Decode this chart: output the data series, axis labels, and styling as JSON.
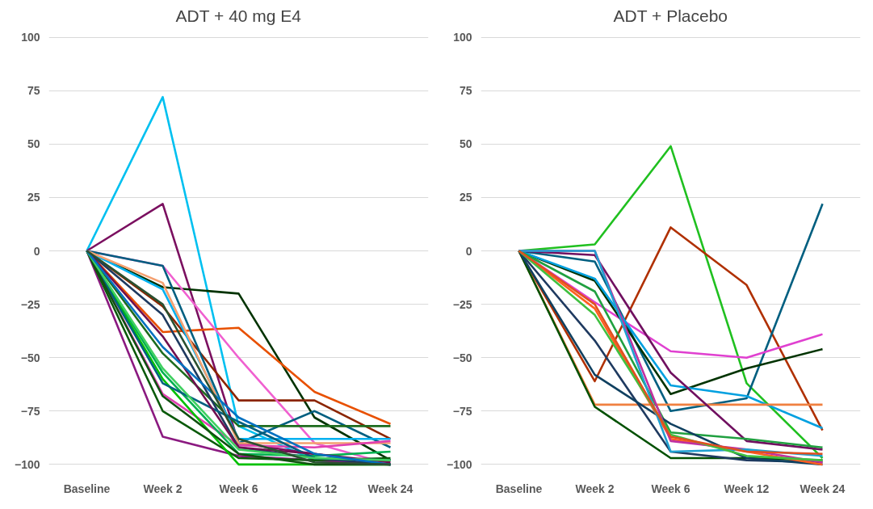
{
  "chart_data": [
    {
      "type": "line",
      "title": "ADT + 40 mg E4",
      "categories": [
        "Baseline",
        "Week 2",
        "Week 6",
        "Week 12",
        "Week 24"
      ],
      "ylim": [
        -100,
        100
      ],
      "yticks": [
        -100,
        -75,
        -50,
        -25,
        0,
        25,
        50,
        75,
        100
      ],
      "grid": "y",
      "line_style": "solid",
      "series": [
        {
          "color": "#00c0f0",
          "values": [
            0,
            72,
            -82,
            -98,
            -100
          ]
        },
        {
          "color": "#7b1060",
          "values": [
            0,
            22,
            -90,
            -95,
            -100
          ]
        },
        {
          "color": "#8b1a80",
          "values": [
            0,
            -87,
            -96,
            -98,
            -100
          ]
        },
        {
          "color": "#003300",
          "values": [
            0,
            -17,
            -20,
            -78,
            -98
          ]
        },
        {
          "color": "#e85000",
          "values": [
            0,
            -38,
            -36,
            -66,
            -81
          ]
        },
        {
          "color": "#8b2500",
          "values": [
            0,
            -26,
            -70,
            -70,
            -88
          ]
        },
        {
          "color": "#f060d0",
          "values": [
            0,
            -7,
            -50,
            -90,
            -100
          ]
        },
        {
          "color": "#005f80",
          "values": [
            0,
            -7,
            -90,
            -75,
            -92
          ]
        },
        {
          "color": "#1e6c1e",
          "values": [
            0,
            -48,
            -82,
            -82,
            -82
          ]
        },
        {
          "color": "#00b0f0",
          "values": [
            0,
            -18,
            -88,
            -88,
            -88
          ]
        },
        {
          "color": "#f4a070",
          "values": [
            0,
            -15,
            -90,
            -90,
            -90
          ]
        },
        {
          "color": "#e040b0",
          "values": [
            0,
            -67,
            -91,
            -92,
            -89
          ]
        },
        {
          "color": "#00b050",
          "values": [
            0,
            -57,
            -95,
            -96,
            -94
          ]
        },
        {
          "color": "#0a5a0a",
          "values": [
            0,
            -75,
            -97,
            -98,
            -97
          ]
        },
        {
          "color": "#00c000",
          "values": [
            0,
            -60,
            -100,
            -100,
            -100
          ]
        },
        {
          "color": "#1f3a60",
          "values": [
            0,
            -30,
            -92,
            -97,
            -100
          ]
        },
        {
          "color": "#006080",
          "values": [
            0,
            -62,
            -80,
            -97,
            -98
          ]
        },
        {
          "color": "#105010",
          "values": [
            0,
            -68,
            -95,
            -100,
            -100
          ]
        },
        {
          "color": "#701050",
          "values": [
            0,
            -40,
            -92,
            -95,
            -99
          ]
        },
        {
          "color": "#40d060",
          "values": [
            0,
            -55,
            -93,
            -97,
            -98
          ]
        },
        {
          "color": "#0070c0",
          "values": [
            0,
            -45,
            -78,
            -95,
            -100
          ]
        },
        {
          "color": "#2a5030",
          "values": [
            0,
            -25,
            -88,
            -99,
            -100
          ]
        }
      ]
    },
    {
      "type": "line",
      "title": "ADT + Placebo",
      "categories": [
        "Baseline",
        "Week 2",
        "Week 6",
        "Week 12",
        "Week 24"
      ],
      "ylim": [
        -100,
        100
      ],
      "yticks": [
        -100,
        -75,
        -50,
        -25,
        0,
        25,
        50,
        75,
        100
      ],
      "grid": "y",
      "line_style": "solid",
      "series": [
        {
          "color": "#20c020",
          "values": [
            0,
            3,
            49,
            -62,
            -97
          ]
        },
        {
          "color": "#b03000",
          "values": [
            0,
            -61,
            11,
            -16,
            -84
          ]
        },
        {
          "color": "#005f80",
          "values": [
            0,
            -5,
            -75,
            -69,
            22
          ]
        },
        {
          "color": "#e040d0",
          "values": [
            0,
            -24,
            -47,
            -50,
            -39
          ]
        },
        {
          "color": "#003300",
          "values": [
            0,
            -14,
            -67,
            -55,
            -46
          ]
        },
        {
          "color": "#00a0e0",
          "values": [
            0,
            -13,
            -63,
            -68,
            -83
          ]
        },
        {
          "color": "#f08040",
          "values": [
            0,
            -72,
            -72,
            -72,
            -72
          ]
        },
        {
          "color": "#701060",
          "values": [
            0,
            -2,
            -57,
            -89,
            -93
          ]
        },
        {
          "color": "#20a040",
          "values": [
            0,
            -19,
            -85,
            -88,
            -92
          ]
        },
        {
          "color": "#005000",
          "values": [
            0,
            -73,
            -97,
            -97,
            -98
          ]
        },
        {
          "color": "#1f3a60",
          "values": [
            0,
            -42,
            -94,
            -98,
            -99
          ]
        },
        {
          "color": "#104060",
          "values": [
            0,
            -58,
            -81,
            -97,
            -100
          ]
        },
        {
          "color": "#ff6020",
          "values": [
            0,
            -27,
            -88,
            -94,
            -100
          ]
        },
        {
          "color": "#c030a0",
          "values": [
            0,
            0,
            -89,
            -93,
            -99
          ]
        },
        {
          "color": "#20a0d0",
          "values": [
            0,
            0,
            -94,
            -93,
            -96
          ]
        },
        {
          "color": "#40c040",
          "values": [
            0,
            -30,
            -86,
            -96,
            -98
          ]
        },
        {
          "color": "#e05020",
          "values": [
            0,
            -25,
            -87,
            -94,
            -95
          ]
        }
      ]
    }
  ]
}
